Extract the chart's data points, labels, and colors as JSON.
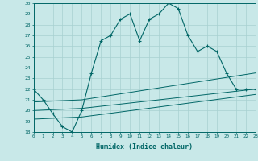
{
  "xlabel": "Humidex (Indice chaleur)",
  "bg_color": "#c8e8e8",
  "line_color": "#006666",
  "grid_color": "#a8d0d0",
  "xmin": 0,
  "xmax": 23,
  "ymin": 18,
  "ymax": 30,
  "main_x": [
    0,
    1,
    2,
    3,
    4,
    5,
    6,
    7,
    8,
    9,
    10,
    11,
    12,
    13,
    14,
    15,
    16,
    17,
    18,
    19,
    20,
    21,
    22,
    23
  ],
  "main_y": [
    22,
    21,
    19.7,
    18.5,
    18,
    20,
    23.5,
    26.5,
    27,
    28.5,
    29,
    26.5,
    28.5,
    29,
    30,
    29.5,
    27.0,
    25.5,
    26,
    25.5,
    23.5,
    22,
    22,
    22
  ],
  "line2_x": [
    0,
    5,
    23
  ],
  "line2_y": [
    20.0,
    20.2,
    22.0
  ],
  "line3_x": [
    0,
    5,
    23
  ],
  "line3_y": [
    19.2,
    19.4,
    21.5
  ],
  "line4_x": [
    0,
    5,
    23
  ],
  "line4_y": [
    20.8,
    21.0,
    23.5
  ]
}
